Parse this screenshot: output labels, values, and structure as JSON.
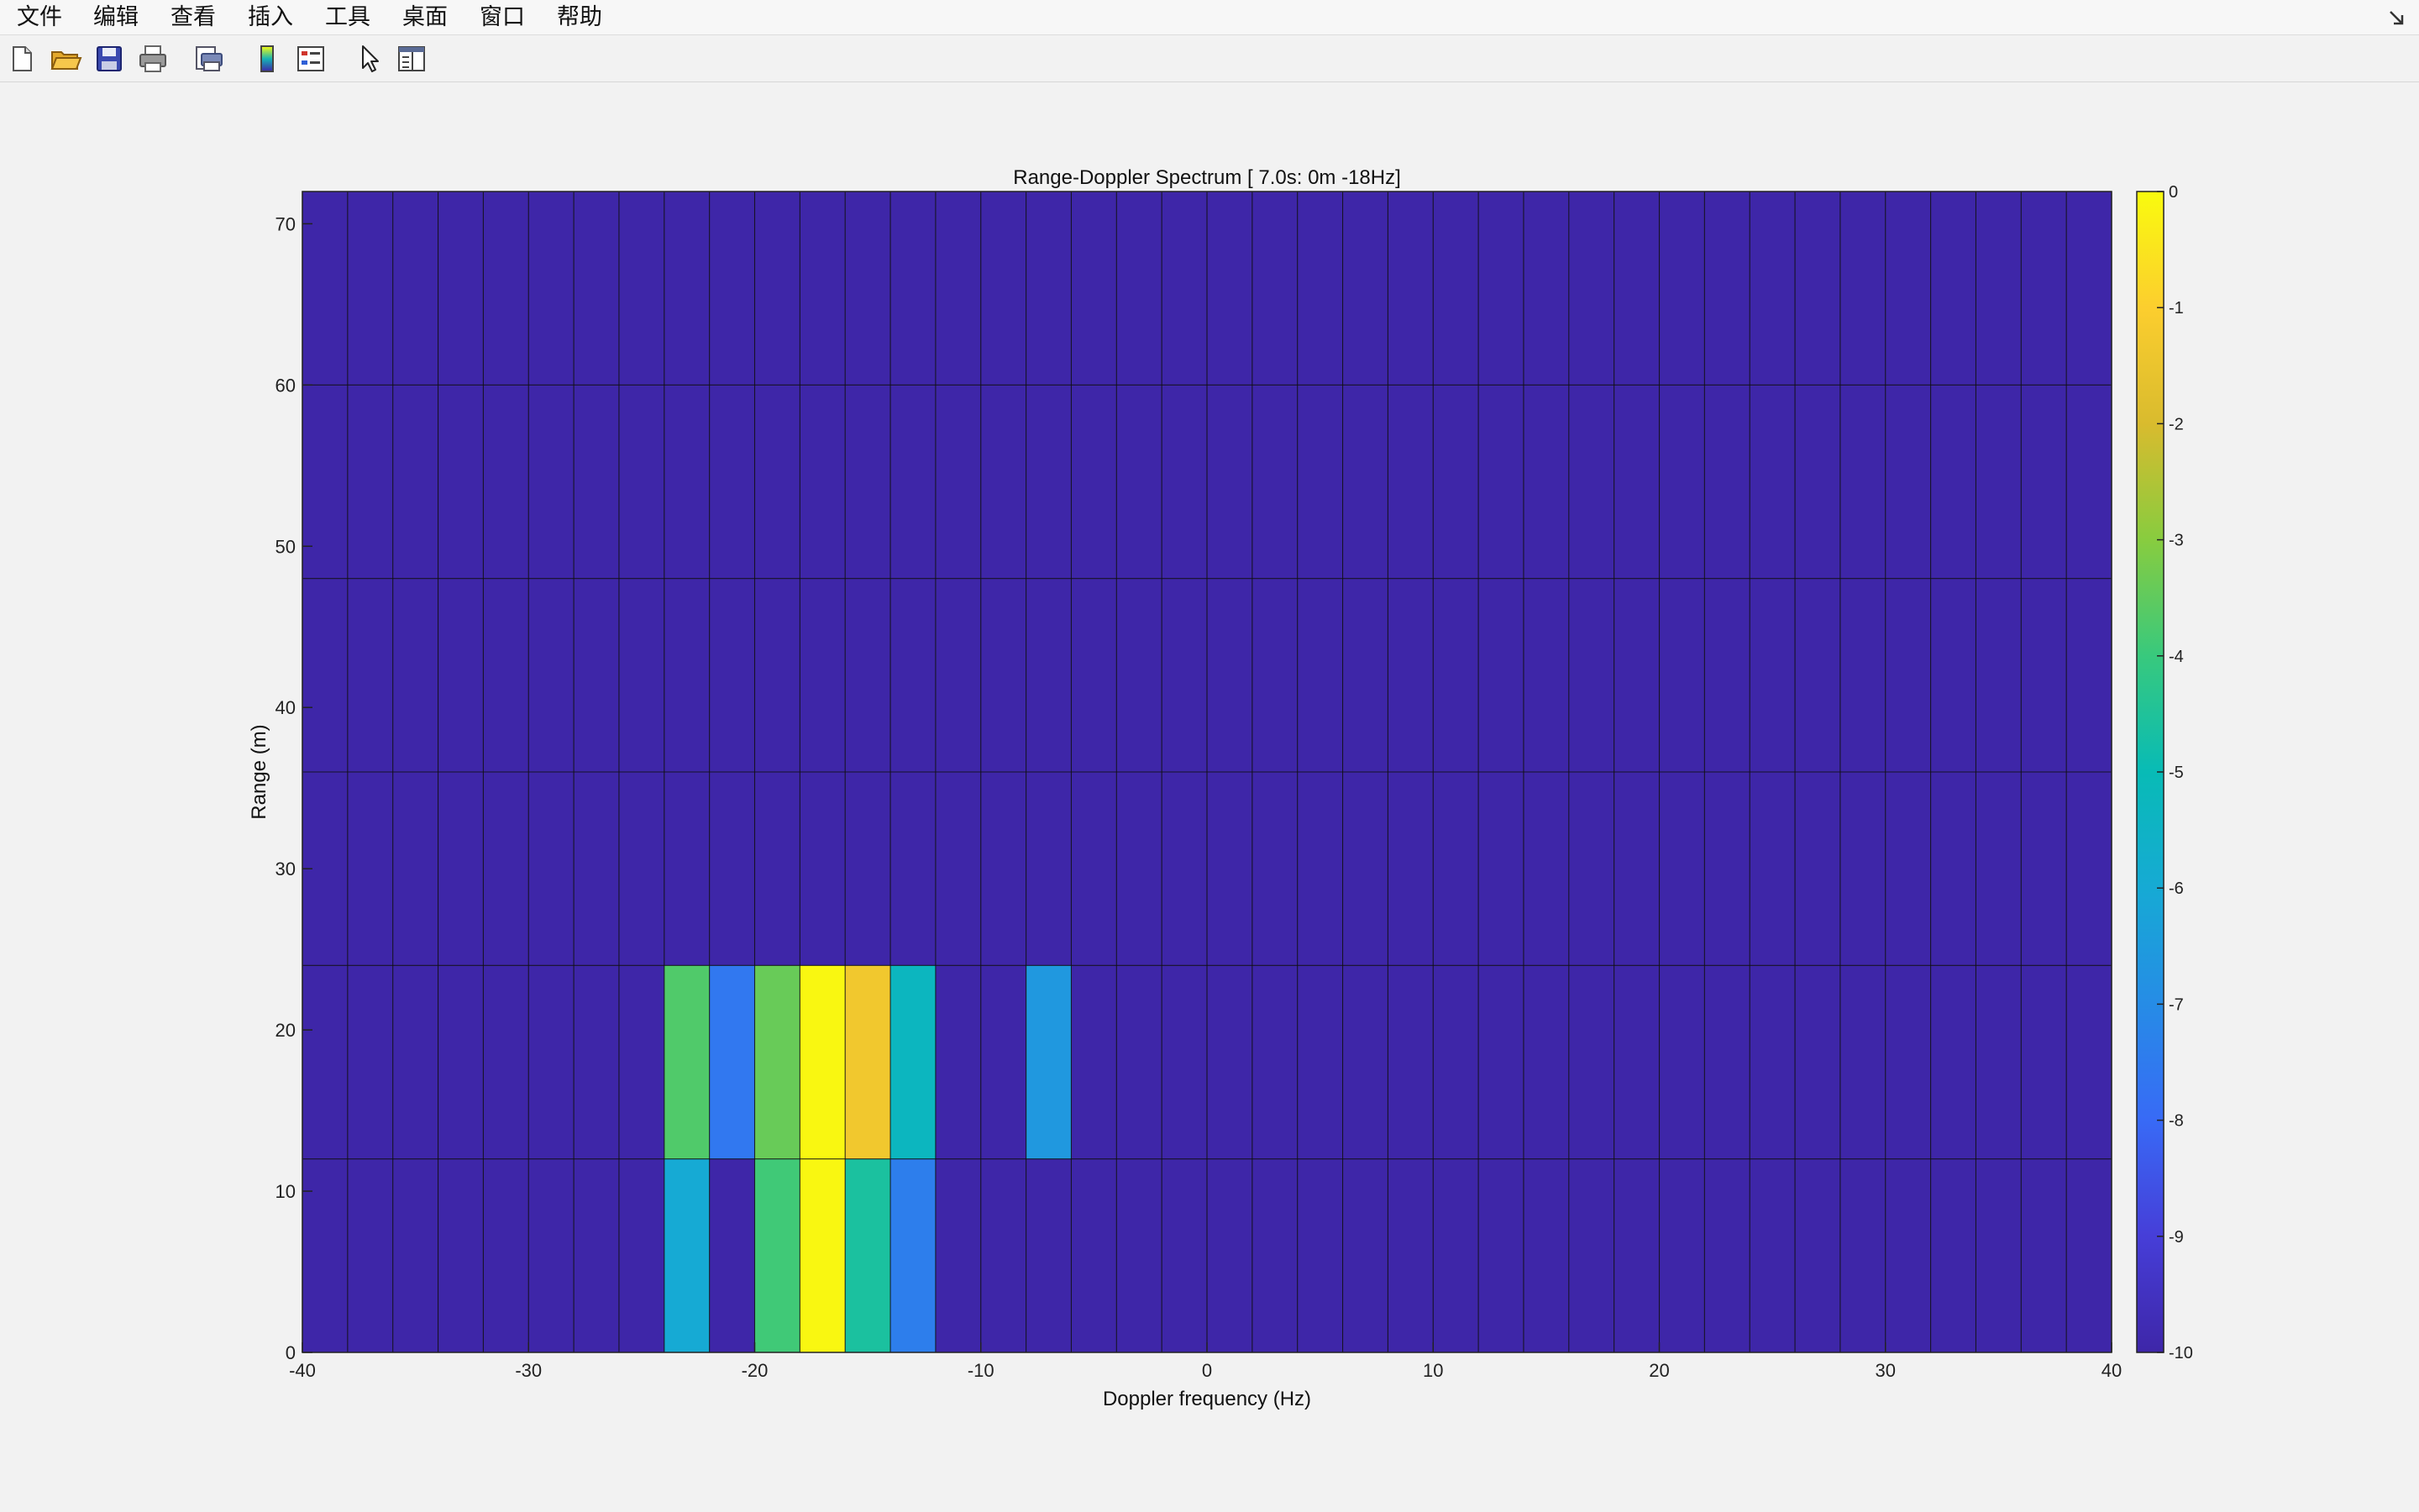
{
  "menubar": {
    "items": [
      "文件",
      "编辑",
      "查看",
      "插入",
      "工具",
      "桌面",
      "窗口",
      "帮助"
    ]
  },
  "toolbar": {
    "tools": [
      "new-figure-icon",
      "open-folder-icon",
      "save-icon",
      "print-icon",
      "print-preview-icon",
      "colorbar-icon",
      "legend-icon",
      "pointer-icon",
      "property-inspector-icon"
    ]
  },
  "colors": {
    "colormap": "parula"
  },
  "chart_data": {
    "type": "heatmap",
    "title": "Range-Doppler Spectrum [ 7.0s:   0m -18Hz]",
    "xlabel": "Doppler frequency (Hz)",
    "ylabel": "Range (m)",
    "xlim": [
      -40,
      40
    ],
    "ylim": [
      0,
      72
    ],
    "x_edges_start": -40,
    "x_bin_width": 2,
    "x_bins": 40,
    "y_edges": [
      0,
      12,
      24,
      36,
      48,
      60,
      72
    ],
    "x_ticks": [
      -40,
      -30,
      -20,
      -10,
      0,
      10,
      20,
      30,
      40
    ],
    "y_ticks": [
      0,
      10,
      20,
      30,
      40,
      50,
      60,
      70
    ],
    "colorbar": {
      "clim": [
        -10,
        0
      ],
      "ticks": [
        0,
        -1,
        -2,
        -3,
        -4,
        -5,
        -6,
        -7,
        -8,
        -9,
        -10
      ]
    },
    "background_value": -10,
    "cells": [
      {
        "x0": -24,
        "y0": 0,
        "value": -6.0
      },
      {
        "x0": -20,
        "y0": 0,
        "value": -3.9
      },
      {
        "x0": -18,
        "y0": 0,
        "value": -0.1
      },
      {
        "x0": -16,
        "y0": 0,
        "value": -4.6
      },
      {
        "x0": -14,
        "y0": 0,
        "value": -7.4
      },
      {
        "x0": -24,
        "y0": 12,
        "value": -3.7
      },
      {
        "x0": -22,
        "y0": 12,
        "value": -7.6
      },
      {
        "x0": -20,
        "y0": 12,
        "value": -3.4
      },
      {
        "x0": -18,
        "y0": 12,
        "value": -0.1
      },
      {
        "x0": -16,
        "y0": 12,
        "value": -1.3
      },
      {
        "x0": -14,
        "y0": 12,
        "value": -5.3
      },
      {
        "x0": -8,
        "y0": 12,
        "value": -6.6
      }
    ]
  }
}
